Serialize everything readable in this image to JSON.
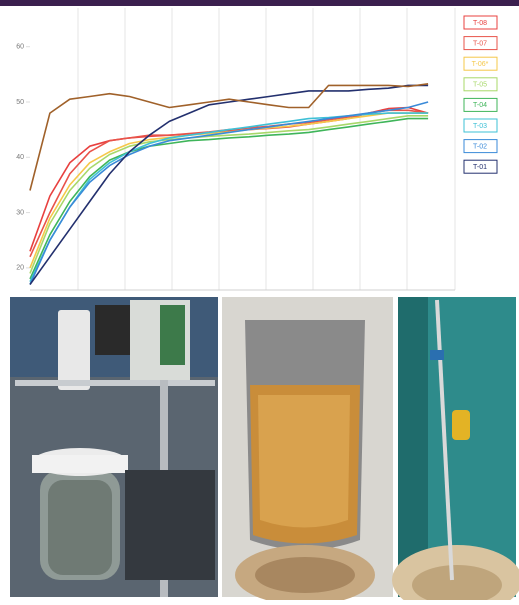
{
  "chart_data": {
    "type": "line",
    "x": [
      0,
      1,
      2,
      3,
      4,
      5,
      6,
      7,
      8,
      9,
      10,
      11,
      12,
      13,
      14,
      15,
      16,
      17,
      18,
      19,
      20
    ],
    "xlim": [
      0,
      21.3
    ],
    "ylim": [
      16,
      67
    ],
    "yticks": [
      20,
      30,
      40,
      50,
      60
    ],
    "series": [
      {
        "name": "T-08",
        "color": "#e8403f",
        "values": [
          23,
          33,
          39,
          42,
          43,
          43.5,
          43.8,
          44,
          44.2,
          44.5,
          44.8,
          45,
          45.2,
          45.5,
          46,
          46.5,
          47,
          48,
          48.8,
          49,
          48
        ]
      },
      {
        "name": "T-07",
        "color": "#e8534a",
        "values": [
          22,
          30,
          37,
          41,
          43,
          43.5,
          44,
          44,
          44.3,
          44.6,
          45,
          45.3,
          45.6,
          46,
          46.3,
          46.8,
          47.3,
          48,
          48.5,
          48.5,
          48
        ]
      },
      {
        "name": "T-06*",
        "color": "#f5c84a",
        "values": [
          20,
          29,
          35,
          39,
          41,
          42.5,
          43.2,
          43.6,
          44,
          44.3,
          44.6,
          45,
          45.3,
          45.6,
          46,
          46.5,
          47,
          47.5,
          48,
          48,
          48
        ]
      },
      {
        "name": "T-05",
        "color": "#a8d86a",
        "values": [
          19,
          28,
          34,
          38,
          40.5,
          42,
          42.8,
          43.2,
          43.5,
          43.8,
          44,
          44.2,
          44.5,
          44.8,
          45,
          45.5,
          46,
          46.5,
          47,
          47.5,
          47.5
        ]
      },
      {
        "name": "T-04",
        "color": "#3fb55a",
        "values": [
          18,
          26,
          32,
          36.5,
          39.5,
          41,
          42,
          42.5,
          43,
          43.2,
          43.5,
          43.7,
          44,
          44.2,
          44.5,
          45,
          45.5,
          46,
          46.5,
          47,
          47
        ]
      },
      {
        "name": "T-03",
        "color": "#3ec0d6",
        "values": [
          17.5,
          25,
          31,
          36,
          39,
          41,
          42.5,
          43.5,
          44,
          44.5,
          45,
          45.5,
          46,
          46.5,
          47,
          47.2,
          47.5,
          47.8,
          48,
          48,
          48
        ]
      },
      {
        "name": "T-02",
        "color": "#3a8ad8",
        "values": [
          17,
          25,
          31,
          35.5,
          38.5,
          40.5,
          42,
          43,
          43.5,
          44,
          44.5,
          45,
          45.5,
          46,
          46.5,
          47,
          47.5,
          48,
          48.5,
          49,
          50
        ]
      },
      {
        "name": "T-01",
        "color": "#23306e",
        "values": [
          17,
          22,
          27,
          32,
          37,
          41,
          44,
          46.5,
          48,
          49.5,
          50,
          50.5,
          51,
          51.5,
          52,
          52,
          52,
          52.3,
          52.5,
          53,
          53
        ]
      },
      {
        "color": "#a0612a",
        "values": [
          34,
          48,
          50.5,
          51,
          51.5,
          51,
          50,
          49,
          49.5,
          50,
          50.5,
          50,
          49.5,
          49,
          49,
          53,
          53,
          53,
          53,
          52.8,
          53.3
        ]
      }
    ]
  }
}
